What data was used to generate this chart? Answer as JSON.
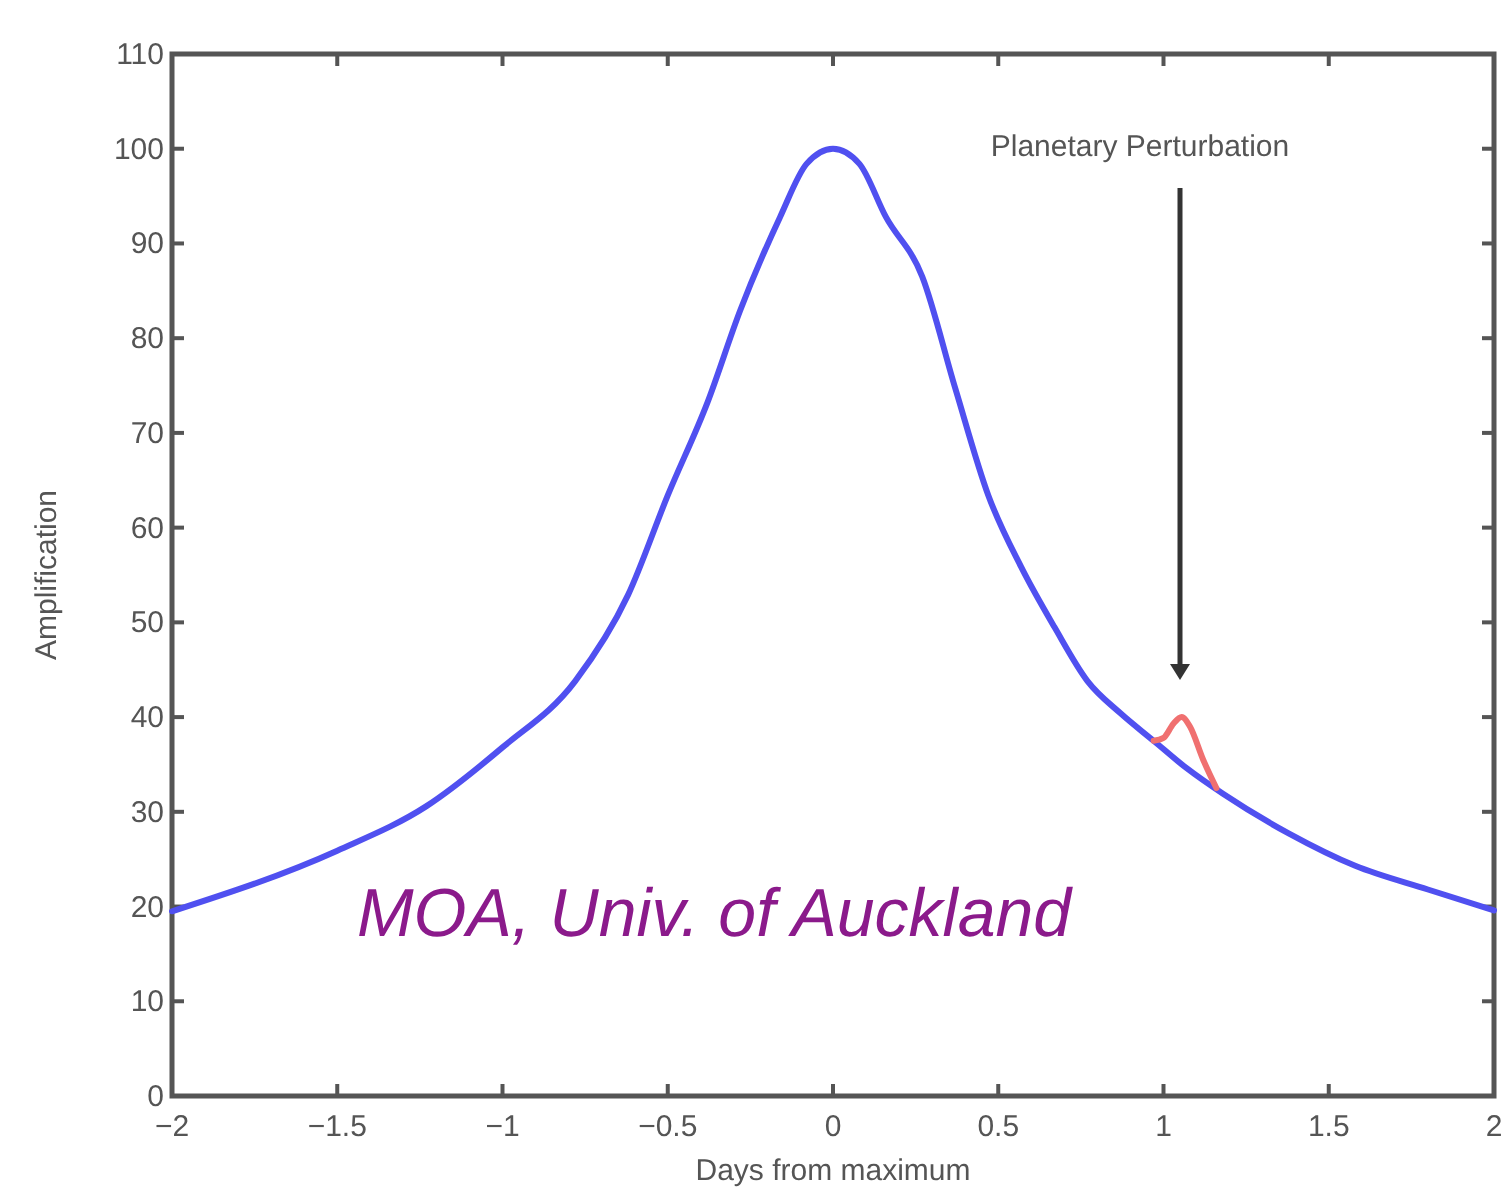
{
  "chart_data": {
    "type": "line",
    "xlabel": "Days from maximum",
    "ylabel": "Amplification",
    "xlim": [
      -2,
      2
    ],
    "xticks": [
      -2,
      -1.5,
      -1,
      -0.5,
      0,
      0.5,
      1,
      1.5,
      2
    ],
    "ylim": [
      0,
      110
    ],
    "yticks": [
      0,
      10,
      20,
      30,
      40,
      50,
      60,
      70,
      80,
      90,
      100,
      110
    ],
    "grid": false,
    "marker": "none",
    "line_style": "solid",
    "series": [
      {
        "color": "#5050f0",
        "x": [
          -2,
          -1.5,
          -1.23,
          -1,
          -0.78,
          -0.62,
          -0.5,
          -0.38,
          -0.28,
          -0.16,
          -0.08,
          0,
          0.08,
          0.16,
          0.27,
          0.37,
          0.47,
          0.57,
          0.67,
          0.77,
          0.87,
          0.97,
          1.07,
          1.18,
          1.38,
          1.58,
          1.8,
          2
        ],
        "values": [
          19.5,
          25.9,
          30.6,
          36.8,
          43.8,
          52.9,
          63.4,
          73.2,
          83,
          92.8,
          98.4,
          100,
          98.4,
          92.8,
          86.5,
          74.7,
          63.4,
          55.8,
          49.5,
          43.8,
          40.4,
          37.5,
          34.6,
          31.9,
          27.7,
          24.3,
          21.8,
          19.6
        ]
      },
      {
        "color": "#f07070",
        "x": [
          0.97,
          1.0,
          1.03,
          1.055,
          1.08,
          1.12,
          1.16
        ],
        "values": [
          37.5,
          37.8,
          39.3,
          40,
          39,
          35.5,
          32.5
        ]
      }
    ],
    "annotations": [
      "Planetary Perturbation",
      "MOA, Univ. of Auckland"
    ]
  }
}
